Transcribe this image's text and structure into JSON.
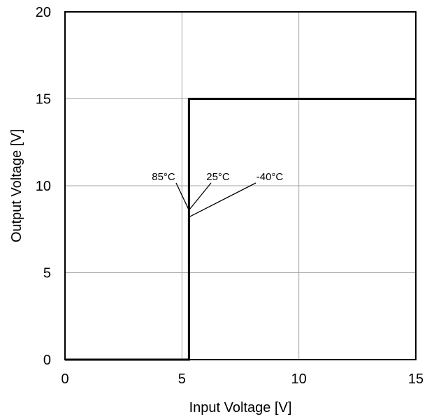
{
  "chart_data": {
    "type": "line",
    "title": "",
    "xlabel": "Input Voltage [V]",
    "ylabel": "Output Voltage [V]",
    "xlim": [
      0,
      15
    ],
    "ylim": [
      0,
      20
    ],
    "xticks": [
      0,
      5,
      10,
      15
    ],
    "yticks": [
      0,
      5,
      10,
      15,
      20
    ],
    "x_tick_labels": [
      "0",
      "5",
      "10",
      "15"
    ],
    "y_tick_labels": [
      "0",
      "5",
      "10",
      "15",
      "20"
    ],
    "grid": true,
    "series": [
      {
        "x": [
          0,
          5.3,
          5.3,
          15
        ],
        "y": [
          0,
          0,
          15,
          15
        ]
      }
    ],
    "annotations": [
      {
        "text": "85°C",
        "at": [
          5.3,
          8.6
        ]
      },
      {
        "text": "25°C",
        "at": [
          5.3,
          8.6
        ]
      },
      {
        "text": "-40°C",
        "at": [
          5.3,
          8.2
        ]
      }
    ]
  }
}
